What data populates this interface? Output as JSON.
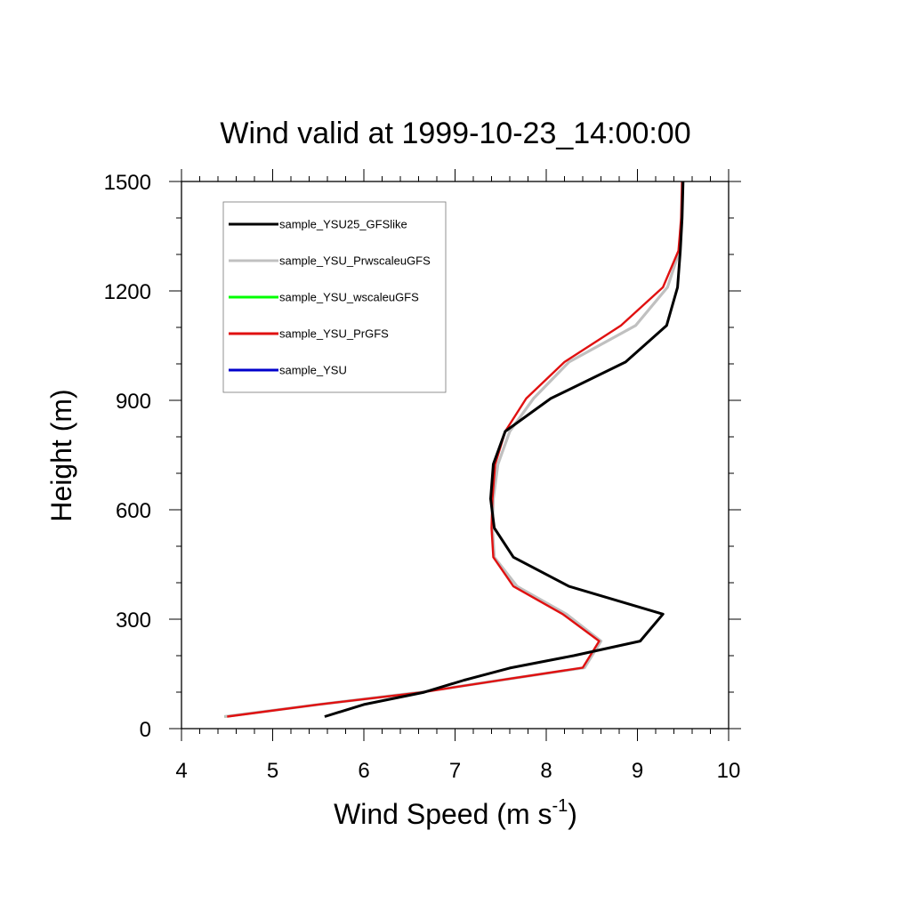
{
  "chart_data": {
    "type": "line",
    "title": "Wind valid at 1999-10-23_14:00:00",
    "xlabel": "Wind Speed (m s",
    "xlabel_sup": "-1",
    "xlabel_end": ")",
    "ylabel": "Height (m)",
    "xlim": [
      4,
      10
    ],
    "ylim": [
      0,
      1500
    ],
    "xticks": [
      "4",
      "5",
      "6",
      "7",
      "8",
      "9",
      "10"
    ],
    "yticks": [
      "0",
      "300",
      "600",
      "900",
      "1200",
      "1500"
    ],
    "legend_position": "top-left",
    "series": [
      {
        "name": "sample_YSU25_GFSlike",
        "color": "#000000",
        "points": [
          [
            5.57,
            33
          ],
          [
            6.0,
            66
          ],
          [
            6.65,
            99
          ],
          [
            7.1,
            133
          ],
          [
            7.6,
            166
          ],
          [
            8.3,
            200
          ],
          [
            9.03,
            240
          ],
          [
            9.28,
            314
          ],
          [
            8.25,
            390
          ],
          [
            7.64,
            470
          ],
          [
            7.43,
            550
          ],
          [
            7.39,
            630
          ],
          [
            7.42,
            725
          ],
          [
            7.55,
            815
          ],
          [
            8.05,
            905
          ],
          [
            8.87,
            1005
          ],
          [
            9.32,
            1105
          ],
          [
            9.44,
            1210
          ],
          [
            9.47,
            1310
          ],
          [
            9.49,
            1400
          ],
          [
            9.5,
            1500
          ]
        ]
      },
      {
        "name": "sample_YSU_PrwscaleuGFS",
        "color": "#c0c0c0",
        "points": [
          [
            4.47,
            33
          ],
          [
            5.5,
            66
          ],
          [
            6.6,
            99
          ],
          [
            7.5,
            133
          ],
          [
            8.42,
            167
          ],
          [
            8.6,
            240
          ],
          [
            8.22,
            314
          ],
          [
            7.68,
            390
          ],
          [
            7.43,
            470
          ],
          [
            7.41,
            550
          ],
          [
            7.42,
            630
          ],
          [
            7.47,
            725
          ],
          [
            7.6,
            815
          ],
          [
            7.86,
            905
          ],
          [
            8.25,
            1005
          ],
          [
            8.98,
            1105
          ],
          [
            9.33,
            1210
          ],
          [
            9.46,
            1310
          ],
          [
            9.48,
            1400
          ],
          [
            9.49,
            1500
          ]
        ]
      },
      {
        "name": "sample_YSU_wscaleuGFS",
        "color": "#00ff00",
        "points": [
          [
            4.47,
            33
          ],
          [
            5.5,
            66
          ],
          [
            6.6,
            99
          ],
          [
            7.5,
            133
          ],
          [
            8.42,
            167
          ],
          [
            8.6,
            240
          ],
          [
            8.22,
            314
          ],
          [
            7.68,
            390
          ],
          [
            7.43,
            470
          ],
          [
            7.41,
            550
          ],
          [
            7.42,
            630
          ],
          [
            7.47,
            725
          ],
          [
            7.6,
            815
          ],
          [
            7.86,
            905
          ],
          [
            8.25,
            1005
          ],
          [
            8.98,
            1105
          ],
          [
            9.33,
            1210
          ],
          [
            9.46,
            1310
          ],
          [
            9.48,
            1400
          ],
          [
            9.49,
            1500
          ]
        ]
      },
      {
        "name": "sample_YSU_PrGFS",
        "color": "#e01010",
        "points": [
          [
            4.5,
            33
          ],
          [
            5.5,
            66
          ],
          [
            6.62,
            99
          ],
          [
            7.5,
            133
          ],
          [
            8.4,
            167
          ],
          [
            8.58,
            240
          ],
          [
            8.18,
            314
          ],
          [
            7.64,
            390
          ],
          [
            7.42,
            470
          ],
          [
            7.4,
            550
          ],
          [
            7.41,
            630
          ],
          [
            7.44,
            725
          ],
          [
            7.55,
            815
          ],
          [
            7.78,
            905
          ],
          [
            8.2,
            1005
          ],
          [
            8.82,
            1105
          ],
          [
            9.28,
            1210
          ],
          [
            9.45,
            1310
          ],
          [
            9.48,
            1400
          ],
          [
            9.49,
            1500
          ]
        ]
      },
      {
        "name": "sample_YSU",
        "color": "#0000cc",
        "points": []
      }
    ]
  }
}
